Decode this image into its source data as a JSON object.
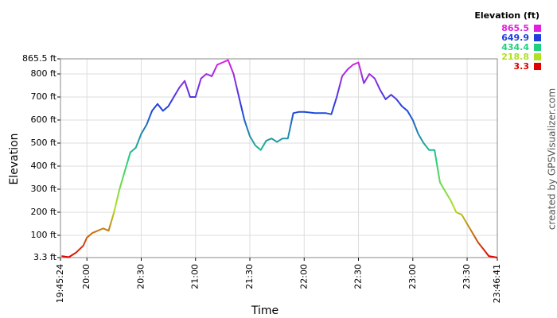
{
  "chart_data": {
    "type": "line",
    "x_label": "Time",
    "y_label": "Elevation",
    "credit": "created by GPSVisualizer.com",
    "legend_title": "Elevation (ft)",
    "color_scale": [
      {
        "value": 865.5,
        "color": "#e020e0"
      },
      {
        "value": 649.9,
        "color": "#1f3fdf"
      },
      {
        "value": 434.4,
        "color": "#20d080"
      },
      {
        "value": 218.8,
        "color": "#b0e020"
      },
      {
        "value": 3.3,
        "color": "#e00000"
      }
    ],
    "grid": true,
    "xlim": [
      "19:45:24",
      "23:46:41"
    ],
    "xticks": [
      "19:45:24",
      "20:00",
      "20:30",
      "21:00",
      "21:30",
      "22:00",
      "22:30",
      "23:00",
      "23:30",
      "23:46:41"
    ],
    "ylim": [
      3.3,
      865.5
    ],
    "yticks": [
      {
        "value": 3.3,
        "label": "3.3 ft"
      },
      {
        "value": 100,
        "label": "100 ft"
      },
      {
        "value": 200,
        "label": "200 ft"
      },
      {
        "value": 300,
        "label": "300 ft"
      },
      {
        "value": 400,
        "label": "400 ft"
      },
      {
        "value": 500,
        "label": "500 ft"
      },
      {
        "value": 600,
        "label": "600 ft"
      },
      {
        "value": 700,
        "label": "700 ft"
      },
      {
        "value": 800,
        "label": "800 ft"
      },
      {
        "value": 865.5,
        "label": "865.5 ft"
      }
    ],
    "x": [
      "19:46",
      "19:50",
      "19:54",
      "19:58",
      "20:00",
      "20:03",
      "20:06",
      "20:09",
      "20:12",
      "20:15",
      "20:18",
      "20:21",
      "20:24",
      "20:27",
      "20:30",
      "20:33",
      "20:36",
      "20:39",
      "20:42",
      "20:45",
      "20:48",
      "20:51",
      "20:54",
      "20:57",
      "21:00",
      "21:03",
      "21:06",
      "21:09",
      "21:12",
      "21:15",
      "21:18",
      "21:21",
      "21:24",
      "21:27",
      "21:30",
      "21:33",
      "21:36",
      "21:39",
      "21:42",
      "21:45",
      "21:48",
      "21:51",
      "21:54",
      "21:57",
      "22:00",
      "22:06",
      "22:12",
      "22:15",
      "22:18",
      "22:21",
      "22:24",
      "22:27",
      "22:30",
      "22:33",
      "22:36",
      "22:39",
      "22:42",
      "22:45",
      "22:48",
      "22:51",
      "22:54",
      "22:57",
      "23:00",
      "23:03",
      "23:06",
      "23:09",
      "23:12",
      "23:15",
      "23:18",
      "23:21",
      "23:24",
      "23:27",
      "23:30",
      "23:33",
      "23:36",
      "23:39",
      "23:42",
      "23:46:41"
    ],
    "values": [
      10,
      5,
      25,
      55,
      90,
      110,
      120,
      130,
      120,
      200,
      300,
      380,
      460,
      480,
      540,
      580,
      640,
      670,
      640,
      660,
      700,
      740,
      770,
      700,
      700,
      780,
      800,
      790,
      840,
      850,
      860,
      800,
      700,
      600,
      530,
      490,
      470,
      510,
      520,
      505,
      520,
      520,
      630,
      635,
      635,
      630,
      630,
      625,
      700,
      790,
      820,
      840,
      850,
      760,
      800,
      780,
      730,
      690,
      710,
      690,
      660,
      640,
      600,
      540,
      500,
      470,
      470,
      330,
      290,
      250,
      200,
      190,
      150,
      110,
      70,
      40,
      10,
      3.3
    ]
  }
}
